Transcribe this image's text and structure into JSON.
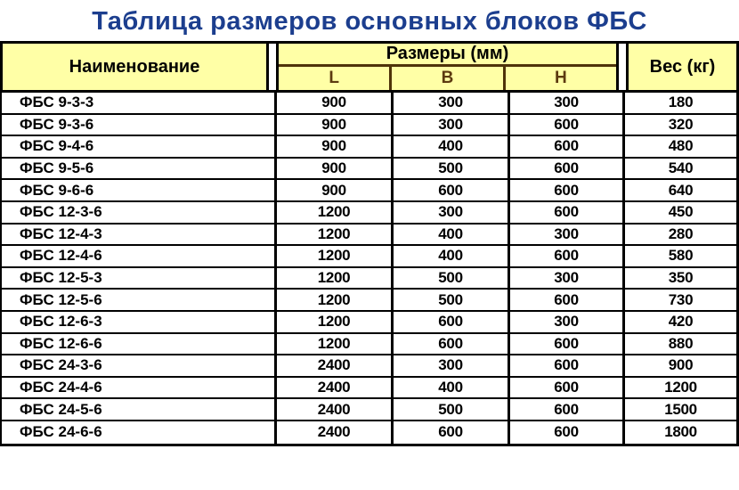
{
  "title": "Таблица размеров основных блоков ФБС",
  "header": {
    "name": "Наименование",
    "sizes_group": "Размеры (мм)",
    "l": "L",
    "b": "B",
    "h": "H",
    "weight": "Вес (кг)"
  },
  "colors": {
    "title_text": "#1c3e8e",
    "header_bg": "#ffffa6",
    "lbh_text": "#5c3a10",
    "header_inner_border": "#4f3309",
    "grid_border": "#000000",
    "body_bg": "#ffffff"
  },
  "chart_data": {
    "type": "table",
    "title": "Таблица размеров основных блоков ФБС",
    "columns": [
      "Наименование",
      "L",
      "B",
      "H",
      "Вес (кг)"
    ],
    "column_groups": [
      {
        "label": "Размеры (мм)",
        "spans": [
          "L",
          "B",
          "H"
        ]
      }
    ],
    "rows": [
      [
        "ФБС 9-3-3",
        "900",
        "300",
        "300",
        "180"
      ],
      [
        "ФБС 9-3-6",
        "900",
        "300",
        "600",
        "320"
      ],
      [
        "ФБС 9-4-6",
        "900",
        "400",
        "600",
        "480"
      ],
      [
        "ФБС 9-5-6",
        "900",
        "500",
        "600",
        "540"
      ],
      [
        "ФБС 9-6-6",
        "900",
        "600",
        "600",
        "640"
      ],
      [
        "ФБС 12-3-6",
        "1200",
        "300",
        "600",
        "450"
      ],
      [
        "ФБС 12-4-3",
        "1200",
        "400",
        "300",
        "280"
      ],
      [
        "ФБС 12-4-6",
        "1200",
        "400",
        "600",
        "580"
      ],
      [
        "ФБС 12-5-3",
        "1200",
        "500",
        "300",
        "350"
      ],
      [
        "ФБС 12-5-6",
        "1200",
        "500",
        "600",
        "730"
      ],
      [
        "ФБС 12-6-3",
        "1200",
        "600",
        "300",
        "420"
      ],
      [
        "ФБС 12-6-6",
        "1200",
        "600",
        "600",
        "880"
      ],
      [
        "ФБС 24-3-6",
        "2400",
        "300",
        "600",
        "900"
      ],
      [
        "ФБС 24-4-6",
        "2400",
        "400",
        "600",
        "1200"
      ],
      [
        "ФБС 24-5-6",
        "2400",
        "500",
        "600",
        "1500"
      ],
      [
        "ФБС 24-6-6",
        "2400",
        "600",
        "600",
        "1800"
      ]
    ]
  }
}
